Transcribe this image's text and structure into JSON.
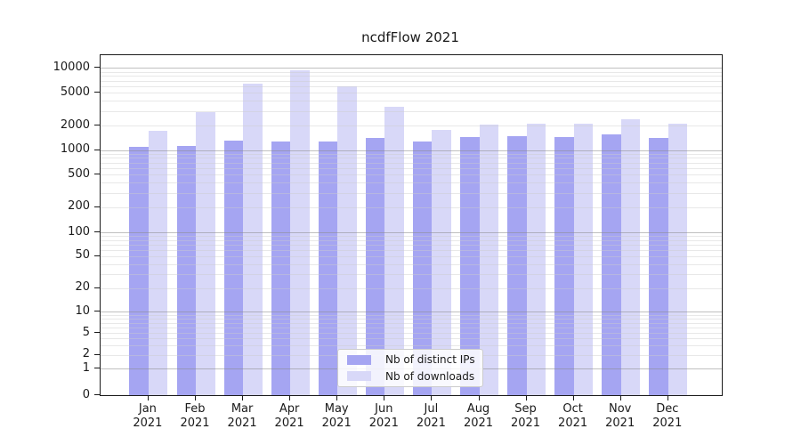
{
  "chart_data": {
    "type": "bar",
    "title": "ncdfFlow 2021",
    "categories": [
      "Jan",
      "Feb",
      "Mar",
      "Apr",
      "May",
      "Jun",
      "Jul",
      "Aug",
      "Sep",
      "Oct",
      "Nov",
      "Dec"
    ],
    "year_label": "2021",
    "series": [
      {
        "name": "Nb of distinct IPs",
        "color": "#a5a5f2",
        "values": [
          1100,
          1130,
          1300,
          1280,
          1270,
          1410,
          1260,
          1450,
          1480,
          1460,
          1570,
          1400
        ]
      },
      {
        "name": "Nb of downloads",
        "color": "#d8d8f8",
        "values": [
          1720,
          2900,
          6500,
          9350,
          5940,
          3350,
          1750,
          2030,
          2090,
          2120,
          2400,
          2120
        ]
      }
    ],
    "xlabel": "",
    "ylabel": "",
    "yscale": "symlog",
    "ytick_labels": [
      0,
      1,
      2,
      5,
      10,
      20,
      50,
      100,
      200,
      500,
      1000,
      2000,
      5000,
      10000
    ],
    "ylim": [
      0,
      14000
    ],
    "grid": true,
    "legend_position": "lower-center-inside",
    "colors": {
      "bar_distinct_ips": "#a5a5f2",
      "bar_downloads": "#d8d8f8",
      "grid_major": "#8c8c8c",
      "grid_minor": "#cdcdcd",
      "axis": "#1a1a1a"
    }
  }
}
